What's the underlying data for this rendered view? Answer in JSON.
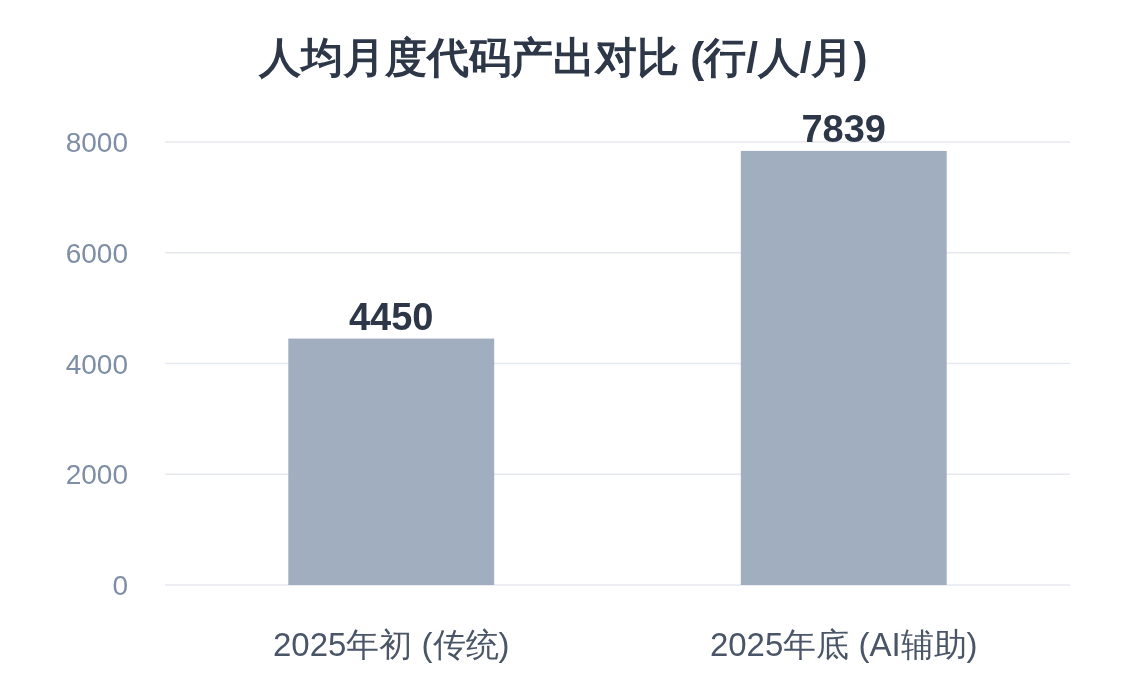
{
  "chart_data": {
    "type": "bar",
    "title": "人均月度代码产出对比 (行/人/月)",
    "categories": [
      "2025年初 (传统)",
      "2025年底 (AI辅助)"
    ],
    "values": [
      4450,
      7839
    ],
    "color": "#a0aec0",
    "ylim": [
      0,
      8000
    ],
    "yticks": [
      0,
      2000,
      4000,
      6000,
      8000
    ],
    "grid": "y",
    "data_labels": true
  }
}
